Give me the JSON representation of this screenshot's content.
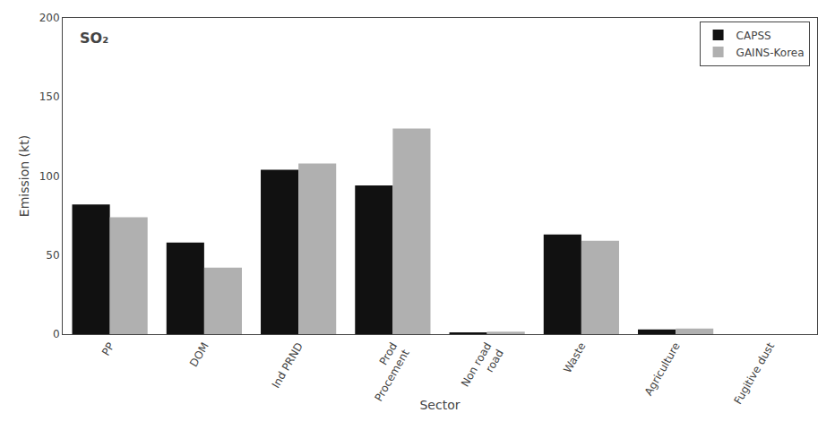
{
  "chart_data": {
    "type": "bar",
    "categories": [
      "PP",
      "DOM",
      "Ind PRND",
      "Prod\nProcement",
      "Non road\nroad",
      "Waste",
      "Agriculture",
      "Fugitive dust"
    ],
    "series": [
      {
        "name": "CAPSS",
        "color": "#111111",
        "values": [
          82,
          58,
          104,
          94,
          1,
          63,
          3,
          0
        ]
      },
      {
        "name": "GAINS-Korea",
        "color": "#b0b0b0",
        "values": [
          74,
          42,
          108,
          130,
          1.5,
          59,
          3.5,
          0
        ]
      }
    ],
    "xlabel": "Sector",
    "ylabel": "Emission (kt)",
    "annotation": "SO₂",
    "ylim": [
      0,
      200
    ],
    "yticks": [
      0,
      50,
      100,
      150,
      200
    ],
    "legend": "upper right",
    "grid": false
  }
}
